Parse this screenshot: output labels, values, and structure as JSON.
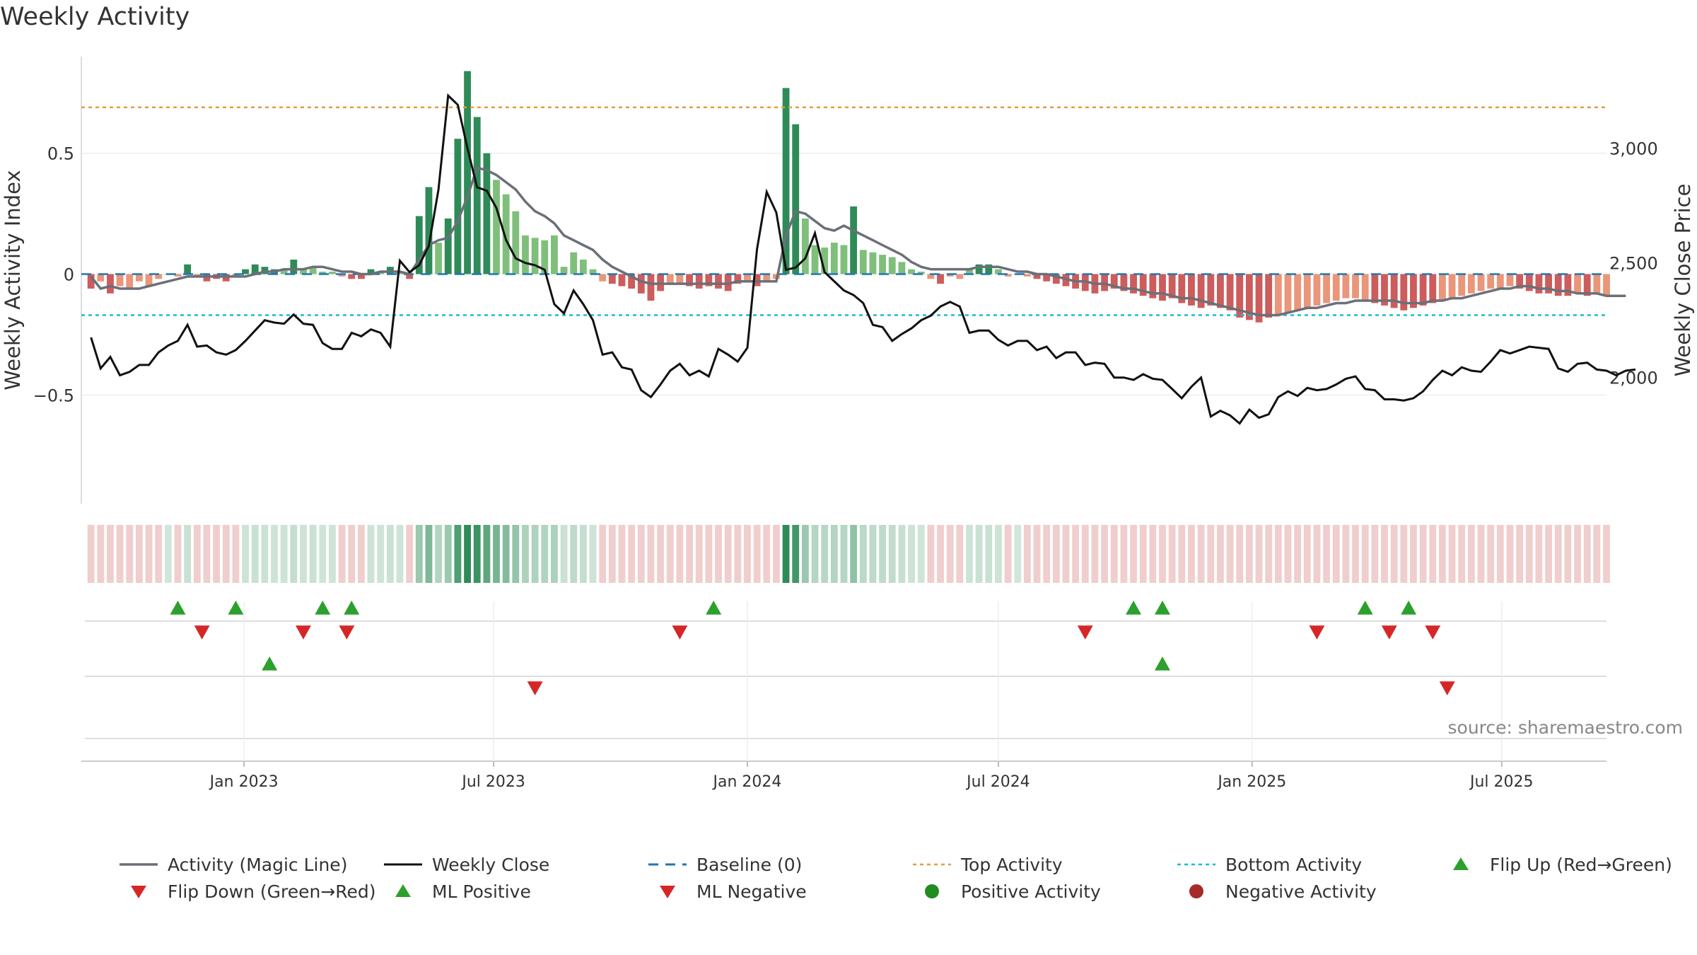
{
  "chart_data": {
    "type": "bar",
    "title": "Weekly Activity",
    "ylabel": "Weekly Activity Index",
    "y2label": "Weekly Close Price",
    "ylim": [
      -0.95,
      0.9
    ],
    "y2lim": [
      1450,
      3400
    ],
    "y_ticks": [
      0.5,
      0,
      -0.5
    ],
    "y_tick_labels": [
      "0.5",
      "0",
      "−0.5"
    ],
    "y2_ticks": [
      3000,
      2500,
      2000
    ],
    "y2_tick_labels": [
      "3,000",
      "2,500",
      "2,000"
    ],
    "x_tick_labels": [
      "Jan 2023",
      "Jul 2023",
      "Jan 2024",
      "Jul 2024",
      "Jan 2025",
      "Jul 2025"
    ],
    "x_tick_dates": [
      "2023-01-01",
      "2023-07-01",
      "2024-01-01",
      "2024-07-01",
      "2025-01-01",
      "2025-07-01"
    ],
    "x_range": [
      "2022-09-05",
      "2025-09-15"
    ],
    "top_activity": 0.69,
    "bottom_activity": -0.17,
    "baseline": 0,
    "series": [
      {
        "name": "Weekly Activity",
        "kind": "bar",
        "start": "2022-09-12",
        "step_days": 7,
        "values": [
          -0.06,
          -0.03,
          -0.08,
          -0.05,
          -0.06,
          -0.03,
          -0.05,
          -0.02,
          0.0,
          -0.01,
          0.04,
          -0.01,
          -0.03,
          -0.02,
          -0.03,
          -0.01,
          0.02,
          0.04,
          0.03,
          0.02,
          0.02,
          0.06,
          0.02,
          0.03,
          0.01,
          0.01,
          -0.01,
          -0.02,
          -0.02,
          0.02,
          0.01,
          0.03,
          0.01,
          -0.02,
          0.24,
          0.36,
          0.13,
          0.23,
          0.56,
          0.84,
          0.65,
          0.5,
          0.39,
          0.33,
          0.26,
          0.16,
          0.15,
          0.14,
          0.16,
          0.03,
          0.09,
          0.06,
          0.02,
          -0.03,
          -0.04,
          -0.05,
          -0.06,
          -0.08,
          -0.11,
          -0.07,
          -0.04,
          -0.04,
          -0.05,
          -0.06,
          -0.05,
          -0.06,
          -0.07,
          -0.04,
          -0.03,
          -0.05,
          -0.03,
          -0.02,
          0.77,
          0.62,
          0.23,
          0.12,
          0.11,
          0.13,
          0.12,
          0.28,
          0.1,
          0.09,
          0.08,
          0.07,
          0.05,
          0.02,
          0.01,
          -0.02,
          -0.04,
          -0.01,
          -0.02,
          0.02,
          0.04,
          0.04,
          0.02,
          -0.01,
          0.0,
          -0.01,
          -0.02,
          -0.03,
          -0.04,
          -0.05,
          -0.06,
          -0.07,
          -0.08,
          -0.07,
          -0.06,
          -0.07,
          -0.08,
          -0.09,
          -0.1,
          -0.11,
          -0.1,
          -0.12,
          -0.13,
          -0.14,
          -0.13,
          -0.14,
          -0.15,
          -0.18,
          -0.19,
          -0.2,
          -0.18,
          -0.17,
          -0.16,
          -0.15,
          -0.14,
          -0.13,
          -0.12,
          -0.11,
          -0.1,
          -0.1,
          -0.11,
          -0.12,
          -0.13,
          -0.14,
          -0.15,
          -0.14,
          -0.13,
          -0.12,
          -0.11,
          -0.1,
          -0.09,
          -0.08,
          -0.07,
          -0.06,
          -0.06,
          -0.05,
          -0.06,
          -0.07,
          -0.08,
          -0.08,
          -0.09,
          -0.09,
          -0.08,
          -0.09,
          -0.08,
          -0.09
        ]
      },
      {
        "name": "Activity (Magic Line)",
        "kind": "line",
        "values": [
          -0.01,
          -0.06,
          -0.05,
          -0.06,
          -0.06,
          -0.06,
          -0.05,
          -0.04,
          -0.03,
          -0.02,
          -0.01,
          -0.01,
          -0.01,
          -0.01,
          -0.01,
          -0.01,
          -0.01,
          0.0,
          0.01,
          0.01,
          0.02,
          0.02,
          0.02,
          0.03,
          0.03,
          0.02,
          0.01,
          0.01,
          0.0,
          0.0,
          0.01,
          0.01,
          0.01,
          0.0,
          0.06,
          0.12,
          0.14,
          0.15,
          0.22,
          0.32,
          0.44,
          0.43,
          0.41,
          0.38,
          0.35,
          0.3,
          0.26,
          0.24,
          0.21,
          0.16,
          0.14,
          0.12,
          0.1,
          0.06,
          0.03,
          0.01,
          -0.01,
          -0.03,
          -0.04,
          -0.04,
          -0.04,
          -0.04,
          -0.04,
          -0.04,
          -0.04,
          -0.04,
          -0.04,
          -0.03,
          -0.03,
          -0.03,
          -0.03,
          -0.03,
          0.16,
          0.26,
          0.25,
          0.22,
          0.19,
          0.18,
          0.2,
          0.18,
          0.16,
          0.14,
          0.12,
          0.1,
          0.08,
          0.05,
          0.03,
          0.02,
          0.02,
          0.02,
          0.02,
          0.02,
          0.03,
          0.03,
          0.03,
          0.02,
          0.01,
          0.01,
          0.0,
          0.0,
          -0.01,
          -0.02,
          -0.03,
          -0.03,
          -0.04,
          -0.04,
          -0.05,
          -0.06,
          -0.06,
          -0.07,
          -0.08,
          -0.08,
          -0.09,
          -0.1,
          -0.1,
          -0.11,
          -0.12,
          -0.13,
          -0.14,
          -0.15,
          -0.16,
          -0.17,
          -0.17,
          -0.17,
          -0.16,
          -0.15,
          -0.14,
          -0.14,
          -0.13,
          -0.12,
          -0.12,
          -0.11,
          -0.11,
          -0.11,
          -0.11,
          -0.11,
          -0.12,
          -0.12,
          -0.12,
          -0.11,
          -0.11,
          -0.1,
          -0.1,
          -0.09,
          -0.08,
          -0.07,
          -0.06,
          -0.06,
          -0.05,
          -0.05,
          -0.06,
          -0.06,
          -0.07,
          -0.07,
          -0.08,
          -0.08,
          -0.08,
          -0.09,
          -0.09,
          -0.09
        ]
      },
      {
        "name": "Weekly Close",
        "kind": "line",
        "axis": "right",
        "values": [
          2175,
          2040,
          2090,
          2010,
          2025,
          2055,
          2055,
          2110,
          2140,
          2160,
          2230,
          2135,
          2140,
          2110,
          2100,
          2120,
          2160,
          2205,
          2250,
          2240,
          2235,
          2275,
          2235,
          2230,
          2150,
          2125,
          2125,
          2195,
          2180,
          2210,
          2195,
          2135,
          2510,
          2460,
          2490,
          2575,
          2820,
          3230,
          3190,
          3000,
          2830,
          2815,
          2740,
          2600,
          2520,
          2500,
          2490,
          2470,
          2320,
          2280,
          2380,
          2320,
          2250,
          2100,
          2110,
          2045,
          2035,
          1945,
          1915,
          1970,
          2030,
          2060,
          2010,
          2030,
          2005,
          2125,
          2100,
          2070,
          2130,
          2560,
          2810,
          2720,
          2470,
          2480,
          2520,
          2630,
          2460,
          2420,
          2380,
          2360,
          2325,
          2230,
          2220,
          2160,
          2190,
          2215,
          2250,
          2270,
          2310,
          2330,
          2310,
          2195,
          2205,
          2205,
          2165,
          2140,
          2160,
          2160,
          2120,
          2135,
          2085,
          2110,
          2110,
          2055,
          2065,
          2060,
          2000,
          2000,
          1990,
          2015,
          1995,
          1990,
          1950,
          1910,
          1960,
          2000,
          1830,
          1855,
          1835,
          1800,
          1860,
          1825,
          1840,
          1915,
          1940,
          1920,
          1955,
          1945,
          1950,
          1970,
          1995,
          2005,
          1950,
          1945,
          1905,
          1905,
          1900,
          1910,
          1940,
          1990,
          2030,
          2010,
          2045,
          2030,
          2025,
          2070,
          2120,
          2105,
          2120,
          2135,
          2130,
          2125,
          2040,
          2025,
          2060,
          2065,
          2035,
          2030,
          2010,
          2030,
          2035
        ]
      }
    ],
    "flip_up_weeks": [
      4,
      8,
      14,
      16,
      41,
      70,
      72,
      86,
      89
    ],
    "flip_down_weeks": [
      5,
      12,
      15,
      38,
      66,
      82,
      87,
      90
    ],
    "ml_positive_weeks": [
      9,
      72
    ],
    "ml_negative_weeks": [
      28,
      91
    ],
    "legend": [
      {
        "label": "Activity (Magic Line)",
        "key": "gray-line"
      },
      {
        "label": "Weekly Close",
        "key": "black-line"
      },
      {
        "label": "Baseline (0)",
        "key": "blue-dash"
      },
      {
        "label": "Top Activity",
        "key": "orange-dot"
      },
      {
        "label": "Bottom Activity",
        "key": "cyan-dot"
      },
      {
        "label": "Flip Up (Red→Green)",
        "key": "green-up"
      },
      {
        "label": "Flip Down (Green→Red)",
        "key": "red-down"
      },
      {
        "label": "ML Positive",
        "key": "green-up"
      },
      {
        "label": "ML Negative",
        "key": "red-down"
      },
      {
        "label": "Positive Activity",
        "key": "green-dot"
      },
      {
        "label": "Negative Activity",
        "key": "red-dot"
      }
    ],
    "source": "source: sharemaestro.com",
    "colors": {
      "magic_line": "#6b6f78",
      "close": "#111111",
      "baseline": "#1f77b4",
      "top": "#e0a040",
      "bottom": "#17becf",
      "up": "#2ca02c",
      "down": "#d62728",
      "pos_dark": "#2e8b57",
      "pos_light": "#7fbf7b",
      "neg_dark": "#cd5c5c",
      "neg_light": "#e9967a"
    }
  }
}
